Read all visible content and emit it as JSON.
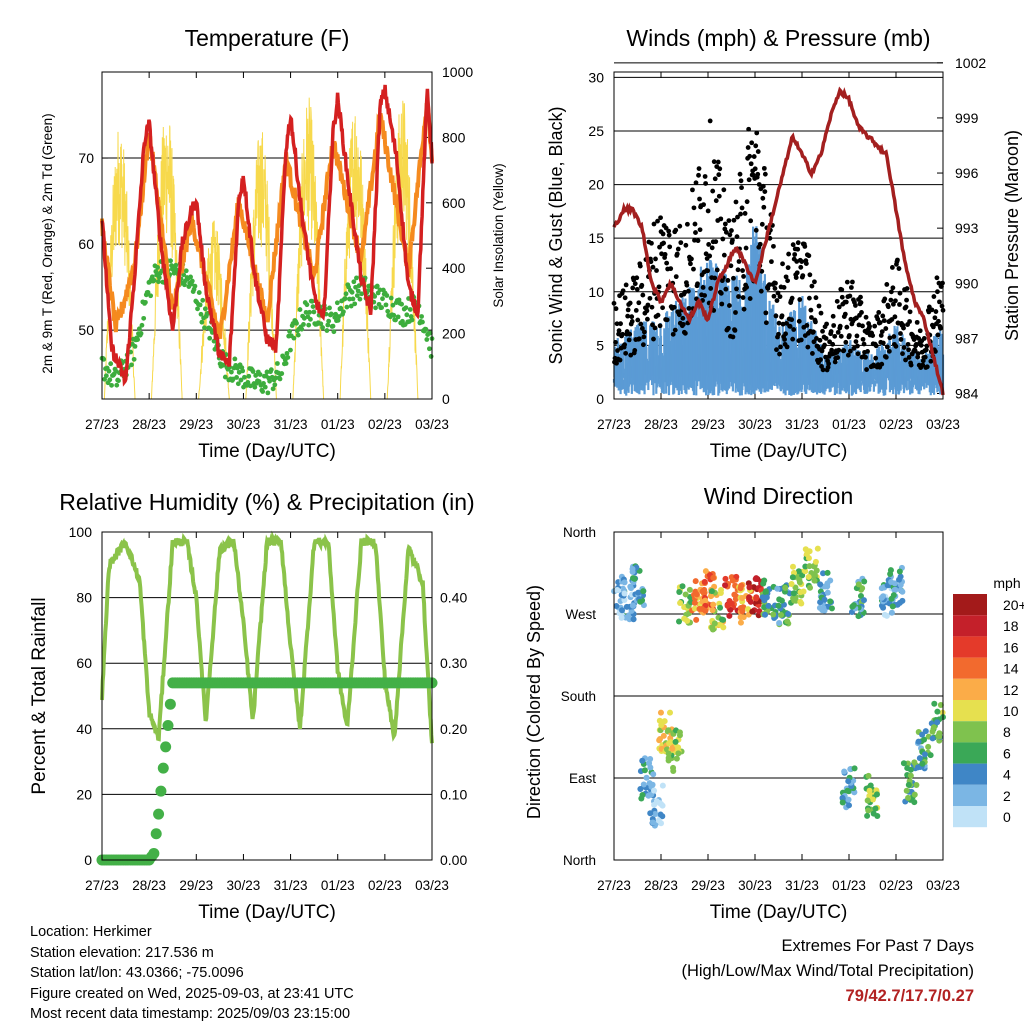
{
  "info": {
    "location": "Location: Herkimer",
    "elevation": "Station elevation: 217.536 m",
    "latlon": "Station lat/lon: 43.0366; -75.0096",
    "created": "Figure created on Wed, 2025-09-03, at 23:41 UTC",
    "recent": "Most recent data timestamp: 2025/09/03 23:15:00"
  },
  "extremes": {
    "title": "Extremes For Past 7 Days",
    "subtitle": "(High/Low/Max Wind/Total Precipitation)",
    "values": "79/42.7/17.7/0.27",
    "color": "#b22222"
  },
  "chart_data": [
    {
      "type": "line",
      "title": "Temperature (F)",
      "xlabel": "Time (Day/UTC)",
      "ylabel": "2m & 9m T (Red, Orange) & 2m Td (Green)",
      "y2label": "Solar Insolation (Yellow)",
      "x_ticks": [
        "27/23",
        "28/23",
        "29/23",
        "30/23",
        "31/23",
        "01/23",
        "02/23",
        "03/23"
      ],
      "ylim": [
        42,
        80
      ],
      "y_ticks": [
        50,
        60,
        70
      ],
      "y2lim": [
        0,
        1000
      ],
      "y2_ticks": [
        0,
        200,
        400,
        600,
        800,
        1000
      ],
      "grid": true,
      "series": [
        {
          "name": "2m T",
          "color": "#d42020",
          "x_days": [
            0,
            0.2,
            0.5,
            0.7,
            0.9,
            1.0,
            1.25,
            1.5,
            1.7,
            1.9,
            2.0,
            2.2,
            2.5,
            2.7,
            2.9,
            3.0,
            3.25,
            3.5,
            3.7,
            3.9,
            4.0,
            4.25,
            4.5,
            4.7,
            4.9,
            5.0,
            5.25,
            5.5,
            5.7,
            5.9,
            6.0,
            6.25,
            6.5,
            6.7,
            6.9,
            7.0
          ],
          "values": [
            63,
            48,
            44,
            57,
            72,
            74,
            60,
            50,
            60,
            64,
            65,
            55,
            47,
            46,
            65,
            68,
            56,
            49,
            48,
            71,
            75,
            63,
            54,
            51,
            73,
            77,
            66,
            56,
            52,
            76,
            78,
            70,
            55,
            52,
            78,
            70
          ]
        },
        {
          "name": "9m T",
          "color": "#f58a1e",
          "x_days": [
            0,
            0.3,
            0.7,
            1.0,
            1.5,
            1.9,
            2.5,
            2.9,
            3.5,
            3.9,
            4.5,
            4.9,
            5.5,
            5.9,
            6.5,
            6.9,
            7.0
          ],
          "values": [
            62,
            50,
            58,
            73,
            52,
            63,
            49,
            65,
            51,
            70,
            56,
            72,
            58,
            75,
            57,
            77,
            70
          ]
        },
        {
          "name": "2m Td",
          "color": "#3dad3d",
          "x_days": [
            0,
            0.3,
            0.7,
            1.0,
            1.2,
            1.5,
            1.8,
            2.0,
            2.3,
            2.6,
            2.9,
            3.2,
            3.5,
            3.8,
            4.0,
            4.3,
            4.6,
            4.9,
            5.2,
            5.5,
            5.8,
            6.1,
            6.4,
            6.7,
            7.0
          ],
          "values": [
            46,
            44,
            48,
            55,
            57,
            57,
            56,
            54,
            50,
            46,
            45,
            44,
            44,
            45,
            49,
            52,
            52,
            51,
            54,
            55,
            54,
            53,
            52,
            53,
            48
          ]
        },
        {
          "name": "Solar Insolation",
          "color": "#f7d94c",
          "axis": "y2",
          "peaks": [
            850,
            900,
            550,
            840,
            930,
            930,
            940,
            930
          ]
        }
      ]
    },
    {
      "type": "scatter",
      "title": "Winds (mph) & Pressure (mb)",
      "xlabel": "Time (Day/UTC)",
      "ylabel": "Sonic Wind & Gust (Blue, Black)",
      "y2label": "Station Pressure (Maroon)",
      "x_ticks": [
        "27/23",
        "28/23",
        "29/23",
        "30/23",
        "31/23",
        "01/23",
        "02/23",
        "03/23"
      ],
      "ylim": [
        0,
        30.5
      ],
      "y_ticks": [
        0,
        5,
        10,
        15,
        20,
        25,
        30
      ],
      "y2lim": [
        983.7,
        1001.5
      ],
      "y2_ticks": [
        984,
        987,
        990,
        993,
        996,
        999,
        1002
      ],
      "grid": true,
      "series": [
        {
          "name": "Sonic Wind",
          "color": "#5b9bd5",
          "x_days": [
            0,
            0.5,
            1.0,
            1.5,
            2.0,
            2.5,
            3.0,
            3.5,
            4.0,
            4.5,
            5.0,
            5.5,
            6.0,
            6.5,
            7.0
          ],
          "values": [
            4,
            5,
            6,
            7,
            10,
            8,
            12,
            5,
            7,
            3,
            4,
            3,
            5,
            3,
            5
          ]
        },
        {
          "name": "Gust",
          "color": "#000000",
          "x_days": [
            0,
            0.5,
            1.0,
            1.5,
            2.0,
            2.5,
            3.0,
            3.5,
            4.0,
            4.5,
            5.0,
            5.5,
            6.0,
            6.5,
            7.0
          ],
          "values": [
            7,
            9,
            14,
            12,
            20,
            12,
            22,
            9,
            12,
            5,
            9,
            5,
            10,
            5,
            10
          ]
        },
        {
          "name": "Station Pressure",
          "color": "#a31f1f",
          "axis": "y2",
          "x_days": [
            0,
            0.2,
            0.4,
            0.6,
            0.8,
            1.0,
            1.2,
            1.4,
            1.6,
            1.8,
            2.0,
            2.2,
            2.4,
            2.6,
            2.8,
            3.0,
            3.2,
            3.4,
            3.6,
            3.8,
            4.0,
            4.2,
            4.4,
            4.6,
            4.8,
            5.0,
            5.2,
            5.4,
            5.6,
            5.8,
            6.0,
            6.2,
            6.4,
            6.6,
            6.8,
            7.0
          ],
          "values": [
            993,
            994,
            994,
            993,
            990,
            989,
            990,
            989,
            988,
            989,
            988,
            990,
            991,
            992,
            991,
            990,
            992,
            994,
            996,
            998,
            997,
            996,
            997,
            999,
            1000.5,
            1000,
            998.5,
            998,
            997.5,
            997,
            994,
            991,
            989,
            988,
            986,
            984
          ]
        }
      ]
    },
    {
      "type": "line",
      "title": "Relative Humidity (%) & Precipitation (in)",
      "xlabel": "Time (Day/UTC)",
      "ylabel": "Percent & Total Rainfall",
      "x_ticks": [
        "27/23",
        "28/23",
        "29/23",
        "30/23",
        "31/23",
        "01/23",
        "02/23",
        "03/23"
      ],
      "ylim": [
        0,
        100
      ],
      "y_ticks": [
        0,
        20,
        40,
        60,
        80,
        100
      ],
      "y2lim": [
        0,
        0.5
      ],
      "y2_ticks": [
        "0.00",
        "0.10",
        "0.20",
        "0.30",
        "0.40"
      ],
      "grid": true,
      "series": [
        {
          "name": "Relative Humidity",
          "color": "#8bc34a",
          "x_days": [
            0,
            0.15,
            0.5,
            0.8,
            1.0,
            1.2,
            1.5,
            1.8,
            2.0,
            2.2,
            2.5,
            2.8,
            3.0,
            3.2,
            3.5,
            3.8,
            4.0,
            4.2,
            4.5,
            4.8,
            5.0,
            5.2,
            5.5,
            5.8,
            6.0,
            6.2,
            6.5,
            6.8,
            7.0
          ],
          "values": [
            50,
            90,
            97,
            85,
            45,
            37,
            97,
            97,
            80,
            42,
            95,
            97,
            72,
            42,
            97,
            97,
            65,
            40,
            97,
            97,
            58,
            40,
            97,
            97,
            55,
            37,
            95,
            85,
            35
          ]
        },
        {
          "name": "Total Precipitation",
          "color": "#43b047",
          "axis": "y2",
          "x_days": [
            0,
            0.5,
            1.0,
            1.1,
            1.2,
            1.3,
            1.5,
            2.0,
            3.0,
            4.0,
            5.0,
            6.0,
            7.0
          ],
          "values": [
            0,
            0,
            0,
            0.01,
            0.07,
            0.14,
            0.27,
            0.27,
            0.27,
            0.27,
            0.27,
            0.27,
            0.27
          ]
        }
      ]
    },
    {
      "type": "scatter",
      "title": "Wind Direction",
      "xlabel": "Time (Day/UTC)",
      "ylabel": "Direction (Colored By Speed)",
      "x_ticks": [
        "27/23",
        "28/23",
        "29/23",
        "30/23",
        "31/23",
        "01/23",
        "02/23",
        "03/23"
      ],
      "y_ticks": [
        "North",
        "West",
        "South",
        "East",
        "North"
      ],
      "ylim": [
        0,
        360
      ],
      "grid": true,
      "legend_title": "mph",
      "legend": [
        "20+",
        "18",
        "16",
        "14",
        "12",
        "10",
        "8",
        "6",
        "4",
        "2",
        "0"
      ],
      "legend_colors": [
        "#a31a1a",
        "#c4202a",
        "#e43a2a",
        "#f26a2e",
        "#fbac48",
        "#e6e04f",
        "#7fc24e",
        "#3aa857",
        "#3f86c6",
        "#7bb6e4",
        "#c0e2f7"
      ],
      "x_days": [
        0.1,
        0.3,
        0.5,
        0.7,
        0.9,
        1.1,
        1.3,
        1.5,
        1.8,
        2.0,
        2.2,
        2.5,
        2.8,
        3.0,
        3.3,
        3.6,
        3.9,
        4.2,
        4.5,
        5.0,
        5.2,
        5.5,
        5.8,
        6.0,
        6.3,
        6.6,
        6.9
      ],
      "values": [
        290,
        285,
        300,
        90,
        60,
        140,
        120,
        280,
        285,
        295,
        275,
        290,
        280,
        290,
        285,
        280,
        300,
        320,
        295,
        80,
        290,
        70,
        290,
        300,
        85,
        120,
        150
      ],
      "speeds": [
        3,
        2,
        4,
        3,
        2,
        10,
        9,
        8,
        12,
        14,
        9,
        16,
        12,
        18,
        6,
        5,
        8,
        9,
        4,
        4,
        5,
        8,
        3,
        4,
        6,
        5,
        7
      ]
    }
  ]
}
